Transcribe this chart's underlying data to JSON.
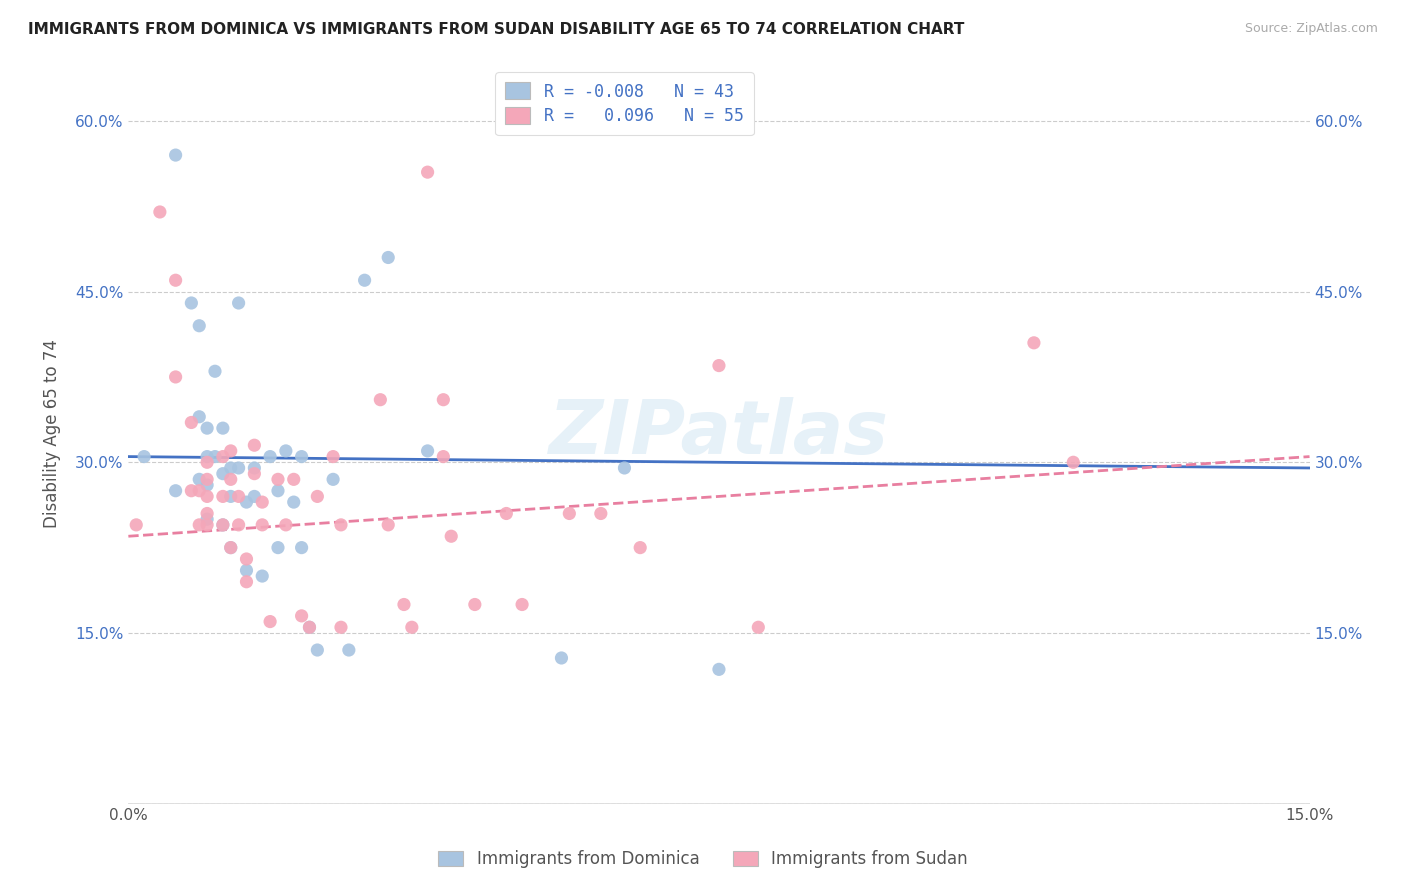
{
  "title": "IMMIGRANTS FROM DOMINICA VS IMMIGRANTS FROM SUDAN DISABILITY AGE 65 TO 74 CORRELATION CHART",
  "source": "Source: ZipAtlas.com",
  "ylabel": "Disability Age 65 to 74",
  "xlim": [
    0.0,
    0.15
  ],
  "ylim": [
    0.0,
    0.65
  ],
  "xticks": [
    0.0,
    0.03,
    0.06,
    0.09,
    0.12,
    0.15
  ],
  "xticklabels": [
    "0.0%",
    "",
    "",
    "",
    "",
    "15.0%"
  ],
  "yticks": [
    0.0,
    0.15,
    0.3,
    0.45,
    0.6
  ],
  "yticklabels": [
    "",
    "15.0%",
    "30.0%",
    "45.0%",
    "60.0%"
  ],
  "dominica_color": "#a8c4e0",
  "sudan_color": "#f4a7b9",
  "dominica_line_color": "#4472c4",
  "sudan_line_color": "#e87fa0",
  "dominica_R": -0.008,
  "dominica_N": 43,
  "sudan_R": 0.096,
  "sudan_N": 55,
  "watermark": "ZIPatlas",
  "dominica_line": [
    0.0,
    0.15,
    0.305,
    0.295
  ],
  "sudan_line": [
    0.0,
    0.15,
    0.235,
    0.305
  ],
  "dominica_x": [
    0.002,
    0.006,
    0.006,
    0.008,
    0.009,
    0.009,
    0.009,
    0.01,
    0.01,
    0.01,
    0.01,
    0.011,
    0.011,
    0.012,
    0.012,
    0.012,
    0.013,
    0.013,
    0.013,
    0.014,
    0.014,
    0.015,
    0.015,
    0.016,
    0.016,
    0.017,
    0.018,
    0.019,
    0.019,
    0.02,
    0.021,
    0.022,
    0.022,
    0.023,
    0.024,
    0.026,
    0.028,
    0.03,
    0.033,
    0.038,
    0.055,
    0.063,
    0.075
  ],
  "dominica_y": [
    0.305,
    0.57,
    0.275,
    0.44,
    0.42,
    0.34,
    0.285,
    0.33,
    0.305,
    0.28,
    0.25,
    0.38,
    0.305,
    0.29,
    0.245,
    0.33,
    0.295,
    0.27,
    0.225,
    0.44,
    0.295,
    0.265,
    0.205,
    0.295,
    0.27,
    0.2,
    0.305,
    0.275,
    0.225,
    0.31,
    0.265,
    0.305,
    0.225,
    0.155,
    0.135,
    0.285,
    0.135,
    0.46,
    0.48,
    0.31,
    0.128,
    0.295,
    0.118
  ],
  "sudan_x": [
    0.001,
    0.004,
    0.006,
    0.006,
    0.008,
    0.008,
    0.009,
    0.009,
    0.01,
    0.01,
    0.01,
    0.01,
    0.01,
    0.012,
    0.012,
    0.012,
    0.013,
    0.013,
    0.013,
    0.014,
    0.014,
    0.015,
    0.015,
    0.016,
    0.016,
    0.017,
    0.017,
    0.018,
    0.019,
    0.02,
    0.021,
    0.022,
    0.023,
    0.024,
    0.026,
    0.027,
    0.027,
    0.032,
    0.033,
    0.035,
    0.036,
    0.038,
    0.04,
    0.04,
    0.041,
    0.044,
    0.048,
    0.05,
    0.056,
    0.06,
    0.065,
    0.075,
    0.08,
    0.115,
    0.12
  ],
  "sudan_y": [
    0.245,
    0.52,
    0.46,
    0.375,
    0.335,
    0.275,
    0.275,
    0.245,
    0.3,
    0.285,
    0.27,
    0.255,
    0.245,
    0.305,
    0.27,
    0.245,
    0.31,
    0.285,
    0.225,
    0.27,
    0.245,
    0.215,
    0.195,
    0.315,
    0.29,
    0.265,
    0.245,
    0.16,
    0.285,
    0.245,
    0.285,
    0.165,
    0.155,
    0.27,
    0.305,
    0.245,
    0.155,
    0.355,
    0.245,
    0.175,
    0.155,
    0.555,
    0.355,
    0.305,
    0.235,
    0.175,
    0.255,
    0.175,
    0.255,
    0.255,
    0.225,
    0.385,
    0.155,
    0.405,
    0.3
  ]
}
